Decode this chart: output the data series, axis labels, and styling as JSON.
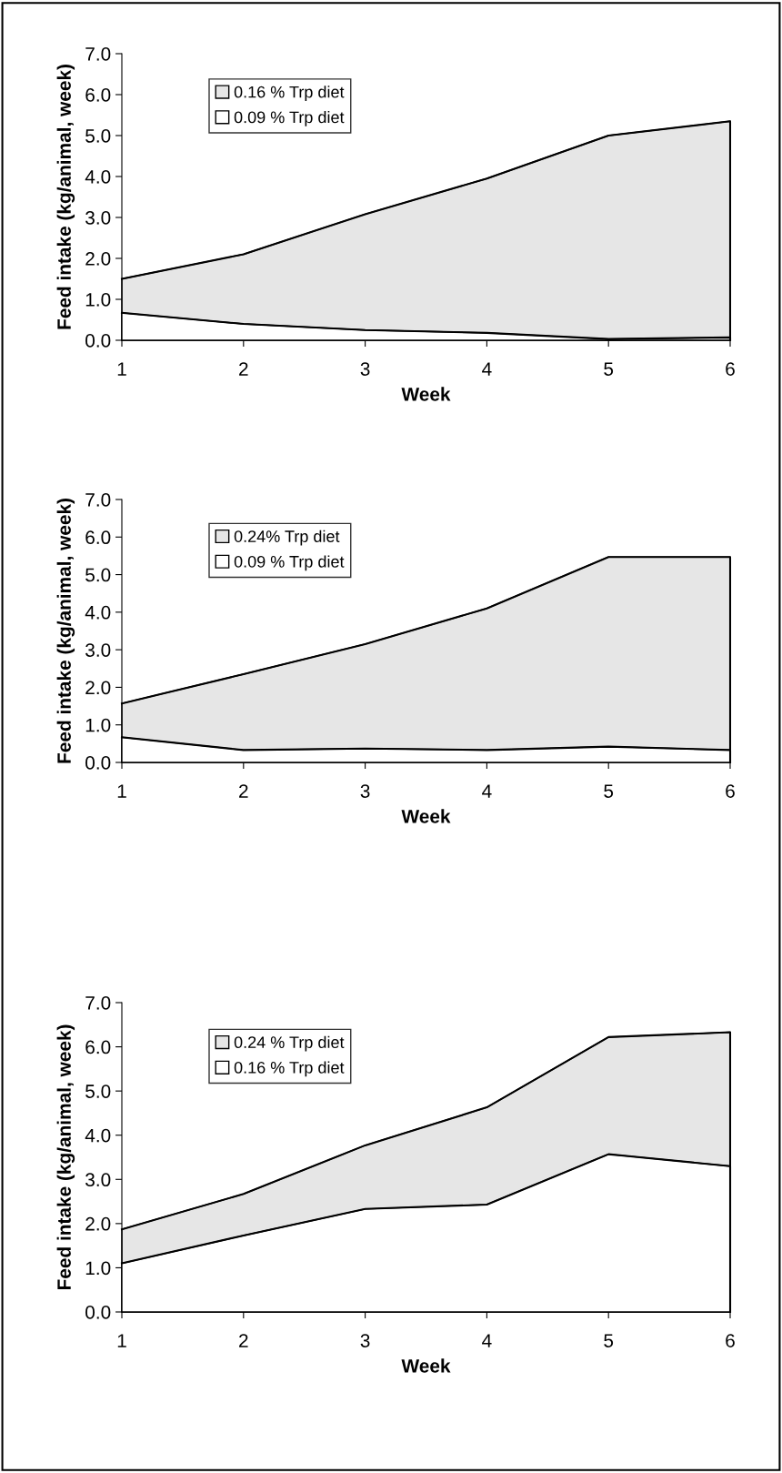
{
  "chart_data": [
    {
      "type": "area",
      "x": [
        1,
        2,
        3,
        4,
        5,
        6
      ],
      "xlabel": "Week",
      "ylabel": "Feed intake (kg/animal, week)",
      "series": [
        {
          "name": "0.16 % Trp diet",
          "color": "#e6e6e6",
          "values": [
            1.5,
            2.1,
            3.08,
            3.95,
            5.0,
            5.35
          ]
        },
        {
          "name": "0.09 % Trp diet",
          "color": "#ffffff",
          "values": [
            0.67,
            0.4,
            0.25,
            0.18,
            0.03,
            0.07
          ]
        }
      ],
      "xlim": [
        1,
        6
      ],
      "xticks": [
        1,
        2,
        3,
        4,
        5,
        6
      ],
      "ylim": [
        0,
        7
      ],
      "yticks": [
        {
          "value": 0,
          "label": "0.0"
        },
        {
          "value": 1,
          "label": "1.0"
        },
        {
          "value": 2,
          "label": "2.0"
        },
        {
          "value": 3,
          "label": "3.0"
        },
        {
          "value": 4,
          "label": "4.0"
        },
        {
          "value": 5,
          "label": "5.0"
        },
        {
          "value": 6,
          "label": "6.0"
        },
        {
          "value": 7,
          "label": "7.0"
        }
      ],
      "grid": false,
      "legend": "top left"
    },
    {
      "type": "area",
      "x": [
        1,
        2,
        3,
        4,
        5,
        6
      ],
      "xlabel": "Week",
      "ylabel": "Feed intake (kg/animal, week)",
      "series": [
        {
          "name": "0.24% Trp diet",
          "color": "#e6e6e6",
          "values": [
            1.57,
            2.35,
            3.15,
            4.1,
            5.47,
            5.47
          ]
        },
        {
          "name": "0.09 % Trp diet",
          "color": "#ffffff",
          "values": [
            0.67,
            0.33,
            0.37,
            0.33,
            0.42,
            0.33
          ]
        }
      ],
      "xlim": [
        1,
        6
      ],
      "xticks": [
        1,
        2,
        3,
        4,
        5,
        6
      ],
      "ylim": [
        0,
        7
      ],
      "yticks": [
        {
          "value": 0,
          "label": "0.0"
        },
        {
          "value": 1,
          "label": "1.0"
        },
        {
          "value": 2,
          "label": "2.0"
        },
        {
          "value": 3,
          "label": "3.0"
        },
        {
          "value": 4,
          "label": "4.0"
        },
        {
          "value": 5,
          "label": "5.0"
        },
        {
          "value": 6,
          "label": "6.0"
        },
        {
          "value": 7,
          "label": "7.0"
        }
      ],
      "grid": false,
      "legend": "top left"
    },
    {
      "type": "area",
      "x": [
        1,
        2,
        3,
        4,
        5,
        6
      ],
      "xlabel": "Week",
      "ylabel": "Feed intake (kg/animal, week)",
      "series": [
        {
          "name": "0.24 % Trp diet",
          "color": "#e6e6e6",
          "values": [
            1.87,
            2.67,
            3.77,
            4.63,
            6.22,
            6.33
          ]
        },
        {
          "name": "0.16 % Trp diet",
          "color": "#ffffff",
          "values": [
            1.1,
            1.73,
            2.33,
            2.43,
            3.57,
            3.3
          ]
        }
      ],
      "xlim": [
        1,
        6
      ],
      "xticks": [
        1,
        2,
        3,
        4,
        5,
        6
      ],
      "ylim": [
        0,
        7
      ],
      "yticks": [
        {
          "value": 0,
          "label": "0.0"
        },
        {
          "value": 1,
          "label": "1.0"
        },
        {
          "value": 2,
          "label": "2.0"
        },
        {
          "value": 3,
          "label": "3.0"
        },
        {
          "value": 4,
          "label": "4.0"
        },
        {
          "value": 5,
          "label": "5.0"
        },
        {
          "value": 6,
          "label": "6.0"
        },
        {
          "value": 7,
          "label": "7.0"
        }
      ],
      "grid": false,
      "legend": "top left"
    }
  ]
}
